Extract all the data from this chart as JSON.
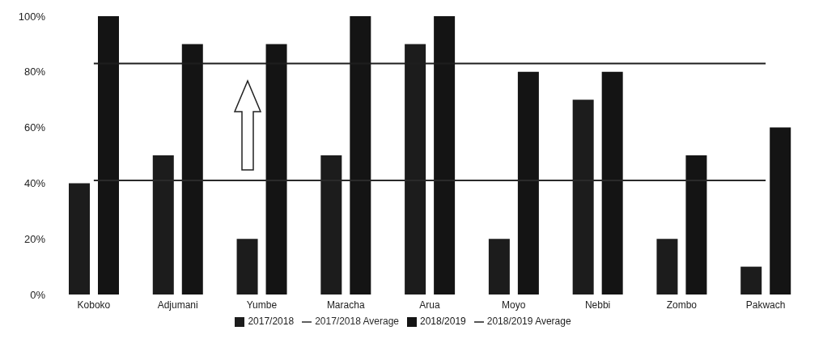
{
  "chart_data": {
    "type": "bar",
    "categories": [
      "Koboko",
      "Adjumani",
      "Yumbe",
      "Maracha",
      "Arua",
      "Moyo",
      "Nebbi",
      "Zombo",
      "Pakwach"
    ],
    "series": [
      {
        "name": "2017/2018",
        "color": "#1c1c1c",
        "values": [
          40,
          50,
          20,
          50,
          90,
          20,
          70,
          20,
          10
        ]
      },
      {
        "name": "2018/2019",
        "color": "#141414",
        "values": [
          100,
          90,
          90,
          100,
          100,
          80,
          80,
          50,
          60
        ]
      },
      {
        "name": "2017/2018 Average",
        "type": "line",
        "color": "#2a2a2a",
        "values": [
          41,
          41,
          41,
          41,
          41,
          41,
          41,
          41,
          41
        ]
      },
      {
        "name": "2018/2019 Average",
        "type": "line",
        "color": "#1e1e1e",
        "values": [
          83,
          83,
          83,
          83,
          83,
          83,
          83,
          83,
          83
        ]
      }
    ],
    "ylim": [
      0,
      100
    ],
    "yticks": [
      {
        "value": 0,
        "label": "0%"
      },
      {
        "value": 20,
        "label": "20%"
      },
      {
        "value": 40,
        "label": "40%"
      },
      {
        "value": 60,
        "label": "60%"
      },
      {
        "value": 80,
        "label": "80%"
      },
      {
        "value": 100,
        "label": "100%"
      }
    ],
    "grid": false,
    "legend": "bottom",
    "marker": "none",
    "line_style": "solid"
  }
}
